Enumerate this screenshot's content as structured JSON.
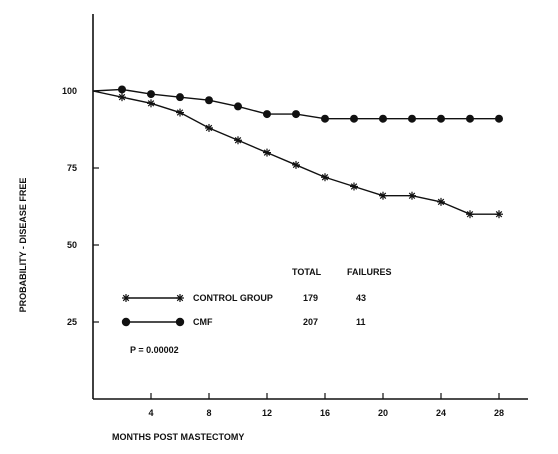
{
  "chart_data": {
    "type": "line",
    "title": "",
    "xlabel": "MONTHS POST MASTECTOMY",
    "ylabel": "PROBABILITY - DISEASE FREE",
    "xlim": [
      0,
      30
    ],
    "ylim": [
      0,
      125
    ],
    "x_ticks": [
      4,
      8,
      12,
      16,
      20,
      24,
      28
    ],
    "x_tick_labels": [
      "4",
      "8",
      "12",
      "16",
      "20",
      "24",
      "28"
    ],
    "y_ticks": [
      25,
      50,
      75,
      100
    ],
    "y_tick_labels": [
      "25",
      "50",
      "75",
      "100"
    ],
    "legend_headers": {
      "total": "TOTAL",
      "failures": "FAILURES"
    },
    "series": [
      {
        "name": "CONTROL GROUP",
        "marker": "star",
        "total": "179",
        "failures": "43",
        "x": [
          0,
          2,
          4,
          6,
          8,
          10,
          12,
          14,
          16,
          18,
          20,
          22,
          24,
          26,
          28
        ],
        "y": [
          100,
          98,
          96,
          93,
          88,
          84,
          80,
          76,
          72,
          69,
          66,
          66,
          64,
          60,
          60
        ]
      },
      {
        "name": "CMF",
        "marker": "circle",
        "total": "207",
        "failures": "11",
        "x": [
          0,
          2,
          4,
          6,
          8,
          10,
          12,
          14,
          16,
          18,
          20,
          22,
          24,
          26,
          28
        ],
        "y": [
          100,
          100.5,
          99,
          98,
          97,
          95,
          92.5,
          92.5,
          91,
          91,
          91,
          91,
          91,
          91,
          91
        ]
      }
    ],
    "annotation": "P = 0.00002",
    "grid": false
  }
}
